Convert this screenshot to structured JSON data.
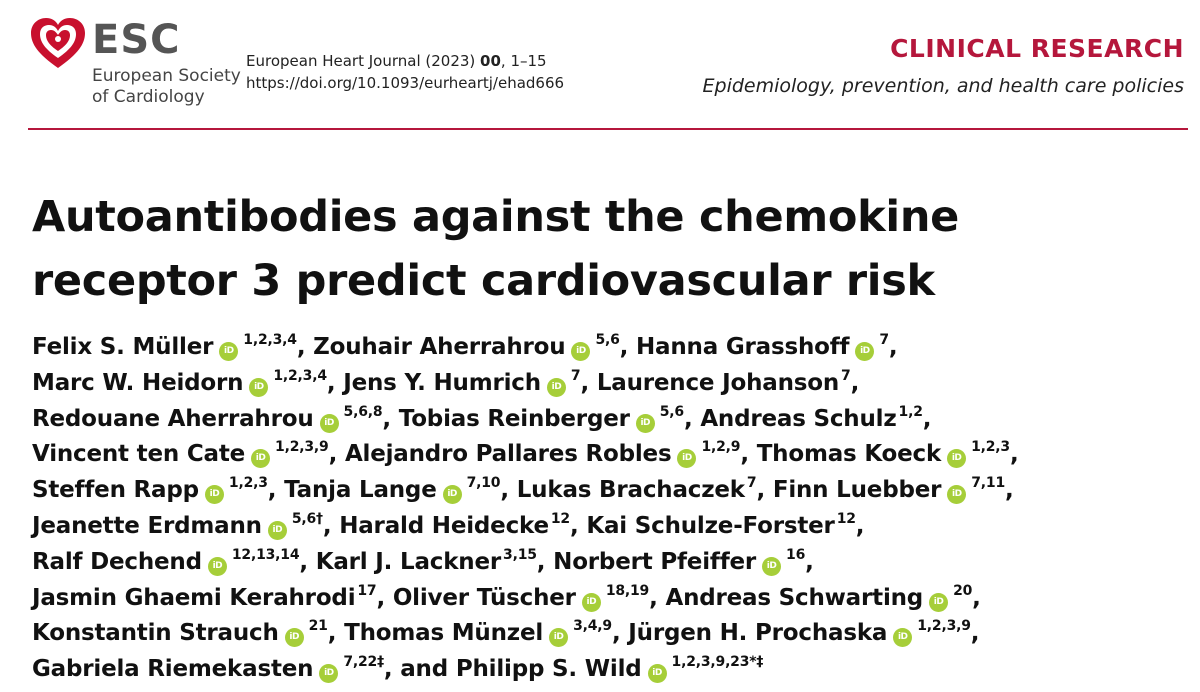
{
  "header": {
    "logo_text": "ESC",
    "society_lines": [
      "European Society",
      "of Cardiology"
    ],
    "journal_name": "European Heart Journal (2023) ",
    "journal_volume": "00",
    "journal_pages": ", 1–15",
    "doi": "https://doi.org/10.1093/eurheartj/ehad666",
    "category": "CLINICAL RESEARCH",
    "subcategory": "Epidemiology, prevention, and health care policies"
  },
  "colors": {
    "accent": "#b5173c",
    "orcid": "#a6ce39"
  },
  "orcid_icon": "iD",
  "title_lines": [
    "Autoantibodies against the chemokine",
    "receptor 3 predict cardiovascular risk"
  ],
  "author_lines": [
    [
      {
        "name": "Felix S. Müller",
        "orcid": true,
        "aff": "1,2,3,4",
        "sep": ", "
      },
      {
        "name": "Zouhair Aherrahrou",
        "orcid": true,
        "aff": "5,6",
        "sep": ", "
      },
      {
        "name": "Hanna Grasshoff",
        "orcid": true,
        "aff": "7",
        "sep": ","
      }
    ],
    [
      {
        "name": "Marc W. Heidorn",
        "orcid": true,
        "aff": "1,2,3,4",
        "sep": ", "
      },
      {
        "name": "Jens Y. Humrich",
        "orcid": true,
        "aff": "7",
        "sep": ", "
      },
      {
        "name": "Laurence Johanson",
        "orcid": false,
        "aff": "7",
        "sep": ","
      }
    ],
    [
      {
        "name": "Redouane Aherrahrou",
        "orcid": true,
        "aff": "5,6,8",
        "sep": ", "
      },
      {
        "name": "Tobias Reinberger",
        "orcid": true,
        "aff": "5,6",
        "sep": ", "
      },
      {
        "name": "Andreas Schulz",
        "orcid": false,
        "aff": "1,2",
        "sep": ","
      }
    ],
    [
      {
        "name": "Vincent ten Cate",
        "orcid": true,
        "aff": "1,2,3,9",
        "sep": ", "
      },
      {
        "name": "Alejandro Pallares Robles",
        "orcid": true,
        "aff": "1,2,9",
        "sep": ", "
      },
      {
        "name": "Thomas Koeck",
        "orcid": true,
        "aff": "1,2,3",
        "sep": ","
      }
    ],
    [
      {
        "name": "Steffen Rapp",
        "orcid": true,
        "aff": "1,2,3",
        "sep": ", "
      },
      {
        "name": "Tanja Lange",
        "orcid": true,
        "aff": "7,10",
        "sep": ", "
      },
      {
        "name": "Lukas Brachaczek",
        "orcid": false,
        "aff": "7",
        "sep": ", "
      },
      {
        "name": "Finn Luebber",
        "orcid": true,
        "aff": "7,11",
        "sep": ","
      }
    ],
    [
      {
        "name": "Jeanette Erdmann",
        "orcid": true,
        "aff": "5,6†",
        "sep": ", "
      },
      {
        "name": "Harald Heidecke",
        "orcid": false,
        "aff": "12",
        "sep": ", "
      },
      {
        "name": "Kai Schulze-Forster",
        "orcid": false,
        "aff": "12",
        "sep": ","
      }
    ],
    [
      {
        "name": "Ralf Dechend",
        "orcid": true,
        "aff": "12,13,14",
        "sep": ", "
      },
      {
        "name": "Karl J. Lackner",
        "orcid": false,
        "aff": "3,15",
        "sep": ", "
      },
      {
        "name": "Norbert Pfeiffer",
        "orcid": true,
        "aff": "16",
        "sep": ","
      }
    ],
    [
      {
        "name": "Jasmin Ghaemi Kerahrodi",
        "orcid": false,
        "aff": "17",
        "sep": ", "
      },
      {
        "name": "Oliver Tüscher",
        "orcid": true,
        "aff": "18,19",
        "sep": ", "
      },
      {
        "name": "Andreas Schwarting",
        "orcid": true,
        "aff": "20",
        "sep": ","
      }
    ],
    [
      {
        "name": "Konstantin Strauch",
        "orcid": true,
        "aff": "21",
        "sep": ", "
      },
      {
        "name": "Thomas Münzel",
        "orcid": true,
        "aff": "3,4,9",
        "sep": ", "
      },
      {
        "name": "Jürgen H. Prochaska",
        "orcid": true,
        "aff": "1,2,3,9",
        "sep": ","
      }
    ],
    [
      {
        "name": "Gabriela Riemekasten",
        "orcid": true,
        "aff": "7,22‡",
        "sep": ", and "
      },
      {
        "name": "Philipp S. Wild",
        "orcid": true,
        "aff": "1,2,3,9,23*‡",
        "sep": ""
      }
    ]
  ]
}
